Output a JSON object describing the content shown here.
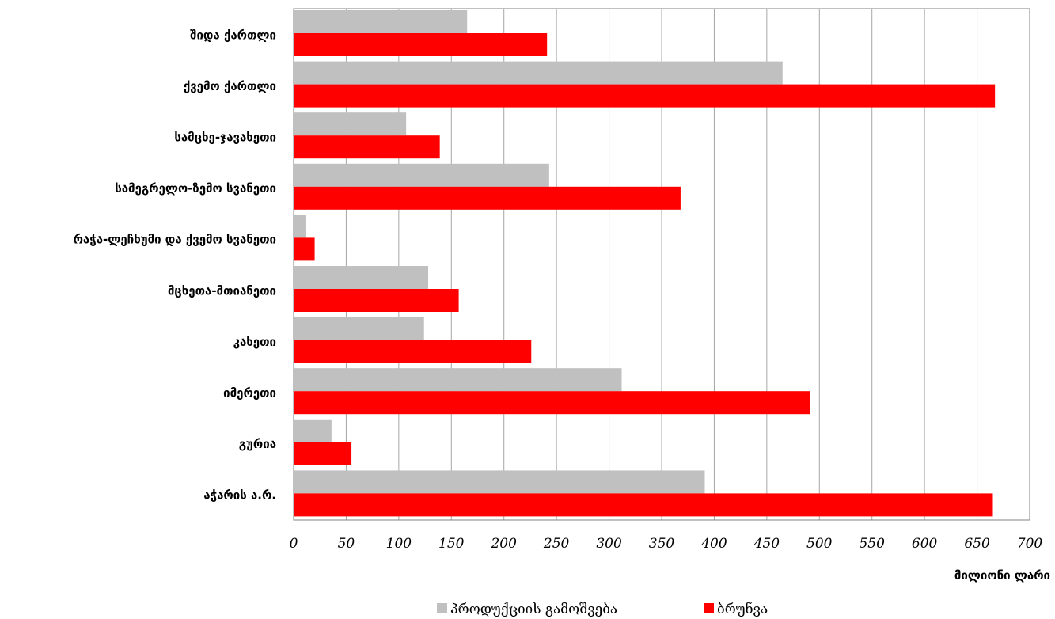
{
  "chart_data": {
    "type": "bar",
    "orientation": "horizontal",
    "categories": [
      "შიდა ქართლი",
      "ქვემო ქართლი",
      "სამცხე-ჯავახეთი",
      "სამეგრელო-ზემო სვანეთი",
      "რაჭა-ლეჩხუმი და ქვემო სვანეთი",
      "მცხეთა-მთიანეთი",
      "კახეთი",
      "იმერეთი",
      "გურია",
      "აჭარის ა.რ."
    ],
    "series": [
      {
        "name": "პროდუქციის გამოშვება",
        "color": "#c0c0c0",
        "values": [
          165,
          465,
          107,
          243,
          12,
          128,
          124,
          312,
          36,
          391
        ]
      },
      {
        "name": "ბრუნვა",
        "color": "#ff0000",
        "values": [
          241,
          667,
          139,
          368,
          20,
          157,
          226,
          491,
          55,
          665
        ]
      }
    ],
    "xlabel": "მილიონი ლარი",
    "xlim": [
      0,
      700
    ],
    "xticks": [
      "0",
      "50",
      "100",
      "150",
      "200",
      "250",
      "300",
      "350",
      "400",
      "450",
      "500",
      "550",
      "600",
      "650",
      "700"
    ],
    "grid": "vertical",
    "legend": "bottom"
  }
}
